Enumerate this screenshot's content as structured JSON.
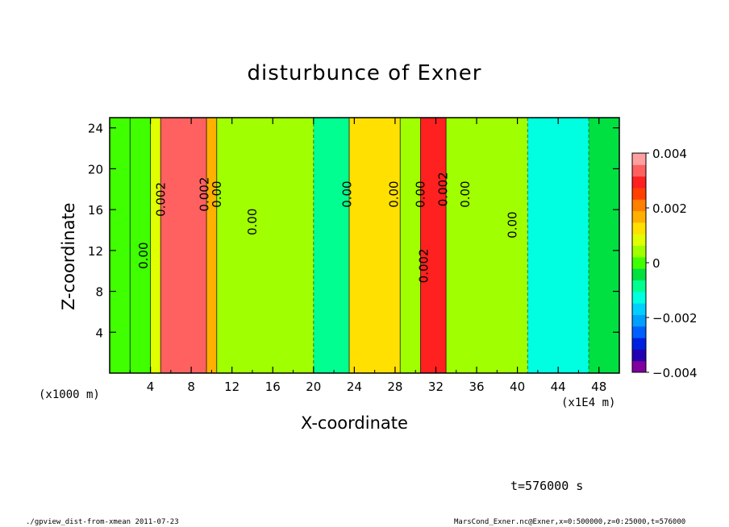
{
  "chart_data": {
    "type": "heatmap",
    "title": "disturbunce of Exner",
    "xlabel": "X-coordinate",
    "ylabel": "Z-coordinate",
    "x_units_left": "(x1000 m)",
    "x_units_right": "(x1E4 m)",
    "x_ticks": [
      "4",
      "8",
      "12",
      "16",
      "20",
      "24",
      "28",
      "32",
      "36",
      "40",
      "44",
      "48"
    ],
    "y_ticks": [
      "4",
      "8",
      "12",
      "16",
      "20",
      "24"
    ],
    "xlim": [
      0,
      50
    ],
    "ylim": [
      0,
      25
    ],
    "colorbar": {
      "range": [
        -0.004,
        0.004
      ],
      "tick_labels": [
        "0.004",
        "0.002",
        "0",
        "−0.002",
        "−0.004"
      ],
      "tick_values": [
        0.004,
        0.002,
        0,
        -0.002,
        -0.004
      ],
      "colors": [
        "#8000a0",
        "#2000b0",
        "#0020e0",
        "#0060ff",
        "#00a0ff",
        "#00d0ff",
        "#00ffe0",
        "#00ff90",
        "#00e040",
        "#40ff00",
        "#a0ff00",
        "#e0ff00",
        "#ffe000",
        "#ffb000",
        "#ff8000",
        "#ff4000",
        "#ff2020",
        "#ff6060",
        "#ffa0a0"
      ]
    },
    "field_columns": [
      {
        "x0": 0,
        "x1": 2,
        "value": -0.0001
      },
      {
        "x0": 2,
        "x1": 4,
        "value": 0.0002
      },
      {
        "x0": 4,
        "x1": 5,
        "value": 0.0008
      },
      {
        "x0": 5,
        "x1": 9.5,
        "value": 0.0034
      },
      {
        "x0": 9.5,
        "x1": 10.5,
        "value": 0.0015
      },
      {
        "x0": 10.5,
        "x1": 20,
        "value": 0.0004
      },
      {
        "x0": 20,
        "x1": 23.5,
        "value": -0.0008
      },
      {
        "x0": 23.5,
        "x1": 28.5,
        "value": 0.0012
      },
      {
        "x0": 28.5,
        "x1": 30.5,
        "value": 0.0003
      },
      {
        "x0": 30.5,
        "x1": 33,
        "value": 0.0028
      },
      {
        "x0": 33,
        "x1": 41,
        "value": 0.0003
      },
      {
        "x0": 41,
        "x1": 47,
        "value": -0.0012
      },
      {
        "x0": 47,
        "x1": 50,
        "value": -0.0006
      }
    ],
    "contour_labels": [
      {
        "x": 3.7,
        "z": 11.5,
        "text": "0.00"
      },
      {
        "x": 5.4,
        "z": 17,
        "text": "0.002"
      },
      {
        "x": 9.7,
        "z": 17.5,
        "text": "0.002"
      },
      {
        "x": 10.9,
        "z": 17.5,
        "text": "0.00"
      },
      {
        "x": 14.4,
        "z": 14.8,
        "text": "0.00"
      },
      {
        "x": 23.7,
        "z": 17.5,
        "text": "0.00"
      },
      {
        "x": 28.3,
        "z": 17.5,
        "text": "0.00"
      },
      {
        "x": 30.9,
        "z": 17.5,
        "text": "0.00"
      },
      {
        "x": 31.2,
        "z": 10.5,
        "text": "0.002"
      },
      {
        "x": 33.1,
        "z": 18,
        "text": "0.002"
      },
      {
        "x": 35.3,
        "z": 17.5,
        "text": "0.00"
      },
      {
        "x": 39.9,
        "z": 14.5,
        "text": "0.00"
      }
    ]
  },
  "labels": {
    "x_units_left": "(x1000 m)",
    "x_units_right": "(x1E4 m)",
    "time": "t=576000 s",
    "footer_left": "./gpview_dist-from-xmean  2011-07-23",
    "footer_right": "MarsCond_Exner.nc@Exner,x=0:500000,z=0:25000,t=576000"
  }
}
